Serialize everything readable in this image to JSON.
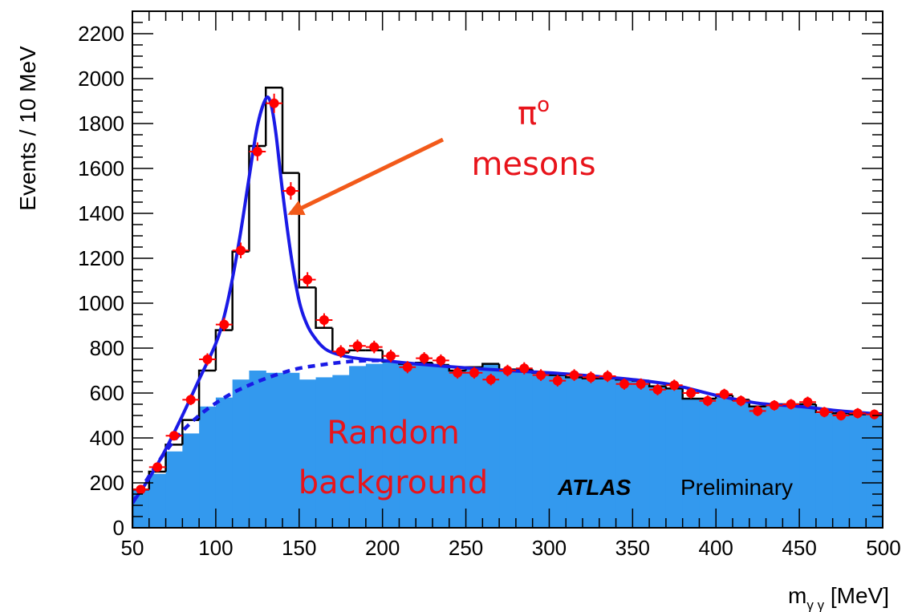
{
  "chart_data": {
    "type": "histogram",
    "xlabel_main": "m",
    "xlabel_sub": "γ γ",
    "xlabel_unit": " [MeV]",
    "ylabel": "Events / 10 MeV",
    "xlim": [
      50,
      500
    ],
    "ylim": [
      0,
      2300
    ],
    "x_ticks": [
      50,
      100,
      150,
      200,
      250,
      300,
      350,
      400,
      450,
      500
    ],
    "y_ticks": [
      0,
      200,
      400,
      600,
      800,
      1000,
      1200,
      1400,
      1600,
      1800,
      2000,
      2200
    ],
    "bin_width": 10,
    "bin_edges": [
      50,
      60,
      70,
      80,
      90,
      100,
      110,
      120,
      130,
      140,
      150,
      160,
      170,
      180,
      190,
      200,
      210,
      220,
      230,
      240,
      250,
      260,
      270,
      280,
      290,
      300,
      310,
      320,
      330,
      340,
      350,
      360,
      370,
      380,
      390,
      400,
      410,
      420,
      430,
      440,
      450,
      460,
      470,
      480,
      490,
      500
    ],
    "series": [
      {
        "kind": "histogram_outline",
        "color": "#000000",
        "values": [
          170,
          250,
          370,
          480,
          700,
          880,
          1230,
          1700,
          1960,
          1580,
          1070,
          890,
          780,
          790,
          790,
          740,
          730,
          735,
          725,
          700,
          715,
          730,
          705,
          705,
          690,
          680,
          670,
          665,
          665,
          660,
          655,
          630,
          620,
          575,
          575,
          590,
          570,
          540,
          550,
          550,
          550,
          515,
          510,
          505,
          510
        ]
      },
      {
        "kind": "histogram_filled",
        "color": "#3399ee",
        "values": [
          170,
          240,
          340,
          420,
          540,
          580,
          660,
          700,
          690,
          690,
          660,
          670,
          680,
          720,
          730,
          740,
          730,
          735,
          720,
          700,
          715,
          730,
          700,
          700,
          690,
          680,
          670,
          665,
          665,
          660,
          655,
          630,
          615,
          575,
          570,
          580,
          570,
          535,
          545,
          550,
          545,
          510,
          505,
          500,
          505
        ]
      },
      {
        "kind": "data_points",
        "color": "#ff0000",
        "values": [
          170,
          270,
          410,
          570,
          750,
          905,
          1235,
          1675,
          1890,
          1500,
          1105,
          925,
          785,
          810,
          805,
          765,
          715,
          755,
          745,
          690,
          690,
          660,
          700,
          710,
          680,
          655,
          680,
          670,
          675,
          640,
          640,
          615,
          635,
          600,
          565,
          595,
          565,
          520,
          545,
          550,
          560,
          515,
          500,
          510,
          505
        ],
        "errors": [
          13,
          16,
          20,
          24,
          27,
          30,
          35,
          41,
          43,
          39,
          33,
          30,
          28,
          28,
          28,
          28,
          27,
          27,
          27,
          26,
          26,
          26,
          26,
          27,
          26,
          26,
          26,
          26,
          26,
          25,
          25,
          25,
          25,
          24,
          24,
          24,
          24,
          23,
          23,
          23,
          24,
          23,
          22,
          23,
          22
        ]
      },
      {
        "kind": "fit_total",
        "style": "solid",
        "color": "#1a1ae6",
        "x": [
          50,
          60,
          70,
          80,
          90,
          100,
          105,
          110,
          115,
          120,
          125,
          130,
          133,
          136,
          140,
          145,
          150,
          155,
          160,
          165,
          170,
          180,
          190,
          200,
          220,
          250,
          275,
          300,
          325,
          350,
          375,
          400,
          425,
          450,
          475,
          500
        ],
        "y": [
          110,
          220,
          350,
          500,
          660,
          820,
          940,
          1110,
          1320,
          1560,
          1790,
          1910,
          1890,
          1760,
          1500,
          1220,
          1010,
          900,
          840,
          800,
          780,
          760,
          750,
          745,
          730,
          712,
          700,
          690,
          676,
          660,
          635,
          590,
          555,
          540,
          520,
          505
        ]
      },
      {
        "kind": "fit_background",
        "style": "dashed",
        "color": "#1a1ae6",
        "x": [
          50,
          60,
          70,
          80,
          90,
          100,
          110,
          120,
          130,
          140,
          150,
          160,
          170,
          180,
          190,
          200
        ],
        "y": [
          110,
          230,
          340,
          430,
          500,
          555,
          600,
          635,
          665,
          690,
          710,
          722,
          732,
          740,
          744,
          745
        ]
      }
    ],
    "annotations": {
      "pi_label": "π",
      "pi_sup": "o",
      "mesons_label": "mesons",
      "random_label": "Random",
      "background_label": "background",
      "atlas_label": "ATLAS",
      "preliminary_label": "Preliminary",
      "arrow_color": "#f25a1a"
    }
  }
}
